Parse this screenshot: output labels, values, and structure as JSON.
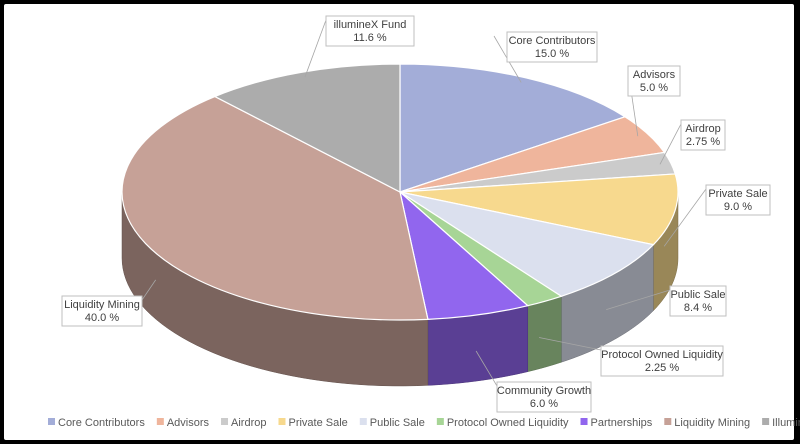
{
  "chart_data": {
    "type": "pie",
    "title": "",
    "slices": [
      {
        "name": "Core Contributors",
        "label_name": "Core Contributors",
        "value": 15.0,
        "label_value": "15.0 %",
        "color": "#a3add8"
      },
      {
        "name": "Advisors",
        "label_name": "Advisors",
        "value": 5.0,
        "label_value": "5.0 %",
        "color": "#efb59c"
      },
      {
        "name": "Airdrop",
        "label_name": "Airdrop",
        "value": 2.75,
        "label_value": "2.75 %",
        "color": "#cbcbcb"
      },
      {
        "name": "Private Sale",
        "label_name": "Private Sale",
        "value": 9.0,
        "label_value": "9.0 %",
        "color": "#f7d98e"
      },
      {
        "name": "Public Sale",
        "label_name": "Public Sale",
        "value": 8.4,
        "label_value": "8.4 %",
        "color": "#dbe0ee"
      },
      {
        "name": "Protocol Owned Liquidity",
        "label_name": "Protocol Owned Liquidity",
        "value": 2.25,
        "label_value": "2.25 %",
        "color": "#a7d596"
      },
      {
        "name": "Partnerships",
        "label_name": "Community Growth",
        "value": 6.0,
        "label_value": "6.0 %",
        "color": "#9166ee"
      },
      {
        "name": "Liquidity Mining",
        "label_name": "Liquidity Mining",
        "value": 40.0,
        "label_value": "40.0 %",
        "color": "#c6a197"
      },
      {
        "name": "Illuminex Fund",
        "label_name": "illumineX Fund",
        "value": 11.6,
        "label_value": "11.6 %",
        "color": "#acacac"
      }
    ],
    "legend": {
      "position": "bottom",
      "entries": [
        "Core Contributors",
        "Advisors",
        "Airdrop",
        "Private Sale",
        "Public Sale",
        "Protocol Owned Liquidity",
        "Partnerships",
        "Liquidity Mining",
        "Illuminex Fund"
      ]
    }
  }
}
